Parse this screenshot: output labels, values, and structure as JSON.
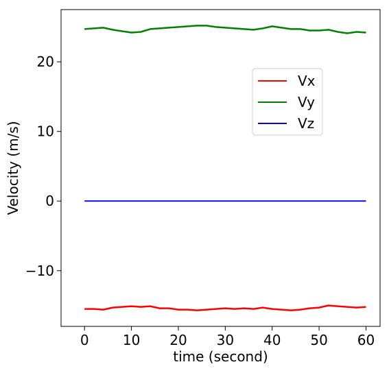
{
  "chart_data": {
    "type": "line",
    "title": "",
    "xlabel": "time (second)",
    "ylabel": "Velocity (m/s)",
    "xlim": [
      -5,
      63
    ],
    "ylim": [
      -18,
      27.5
    ],
    "xticks": [
      0,
      10,
      20,
      30,
      40,
      50,
      60
    ],
    "yticks": [
      -10,
      0,
      10,
      20
    ],
    "ytick_labels": [
      "−10",
      "0",
      "10",
      "20"
    ],
    "grid": false,
    "legend_position": "upper-right",
    "series": [
      {
        "name": "Vx",
        "color": "#ff0000",
        "x": [
          0,
          2,
          4,
          6,
          8,
          10,
          12,
          14,
          16,
          18,
          20,
          22,
          24,
          26,
          28,
          30,
          32,
          34,
          36,
          38,
          40,
          42,
          44,
          46,
          48,
          50,
          52,
          54,
          56,
          58,
          60
        ],
        "values": [
          -15.5,
          -15.5,
          -15.6,
          -15.3,
          -15.2,
          -15.1,
          -15.2,
          -15.1,
          -15.4,
          -15.4,
          -15.6,
          -15.6,
          -15.7,
          -15.6,
          -15.5,
          -15.4,
          -15.5,
          -15.4,
          -15.5,
          -15.3,
          -15.5,
          -15.6,
          -15.7,
          -15.6,
          -15.4,
          -15.3,
          -15.0,
          -15.1,
          -15.2,
          -15.3,
          -15.2
        ]
      },
      {
        "name": "Vy",
        "color": "#008000",
        "x": [
          0,
          2,
          4,
          6,
          8,
          10,
          12,
          14,
          16,
          18,
          20,
          22,
          24,
          26,
          28,
          30,
          32,
          34,
          36,
          38,
          40,
          42,
          44,
          46,
          48,
          50,
          52,
          54,
          56,
          58,
          60
        ],
        "values": [
          24.7,
          24.8,
          24.9,
          24.6,
          24.4,
          24.2,
          24.3,
          24.7,
          24.8,
          24.9,
          25.0,
          25.1,
          25.2,
          25.2,
          25.0,
          24.9,
          24.8,
          24.7,
          24.6,
          24.8,
          25.1,
          24.9,
          24.7,
          24.7,
          24.5,
          24.5,
          24.6,
          24.3,
          24.1,
          24.3,
          24.2
        ]
      },
      {
        "name": "Vz",
        "color": "#0000ff",
        "x": [
          0,
          5,
          10,
          15,
          20,
          25,
          30,
          35,
          40,
          45,
          50,
          55,
          60
        ],
        "values": [
          0.0,
          0.0,
          0.0,
          0.0,
          0.0,
          0.0,
          0.0,
          0.0,
          0.0,
          0.0,
          0.0,
          0.0,
          0.0
        ]
      }
    ]
  }
}
